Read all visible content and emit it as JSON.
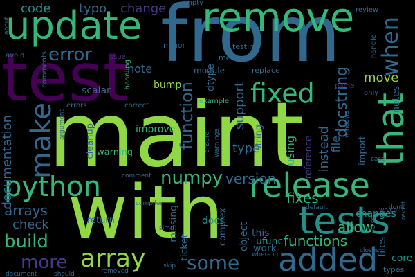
{
  "background": "#000000",
  "palette": {
    "lime": "#8fd744",
    "green": "#35b779",
    "teal": "#21918c",
    "blue": "#31688e",
    "indigo": "#443983",
    "purple": "#440154",
    "yellow": "#fde725"
  },
  "words": [
    {
      "text": "maint",
      "color": "#8fd744"
    },
    {
      "text": "from",
      "color": "#31688e"
    },
    {
      "text": "with",
      "color": "#8fd744"
    },
    {
      "text": "test",
      "color": "#440154"
    },
    {
      "text": "update",
      "color": "#35b779"
    },
    {
      "text": "remove",
      "color": "#35b779"
    },
    {
      "text": "tests",
      "color": "#21918c"
    },
    {
      "text": "release",
      "color": "#35b779"
    },
    {
      "text": "added",
      "color": "#31688e"
    },
    {
      "text": "that",
      "color": "#35b779"
    },
    {
      "text": "python",
      "color": "#35b779"
    },
    {
      "text": "array",
      "color": "#8fd744"
    },
    {
      "text": "fixed",
      "color": "#35b779"
    },
    {
      "text": "make",
      "color": "#31688e"
    },
    {
      "text": "when",
      "color": "#31688e"
    },
    {
      "text": "error",
      "color": "#31688e"
    },
    {
      "text": "some",
      "color": "#31688e"
    },
    {
      "text": "numpy",
      "color": "#35b779"
    },
    {
      "text": "build",
      "color": "#35b779"
    },
    {
      "text": "more",
      "color": "#443983"
    },
    {
      "text": "function",
      "color": "#31688e"
    },
    {
      "text": "documentation",
      "color": "#31688e"
    },
    {
      "text": "version",
      "color": "#31688e"
    },
    {
      "text": "fixes",
      "color": "#35b779"
    },
    {
      "text": "arrays",
      "color": "#31688e"
    },
    {
      "text": "check",
      "color": "#31688e"
    },
    {
      "text": "docstring",
      "color": "#31688e"
    },
    {
      "text": "functions",
      "color": "#35b779"
    },
    {
      "text": "allow",
      "color": "#35b779"
    },
    {
      "text": "code",
      "color": "#21918c"
    },
    {
      "text": "typo",
      "color": "#31688e"
    },
    {
      "text": "change",
      "color": "#443983"
    },
    {
      "text": "support",
      "color": "#31688e"
    },
    {
      "text": "type",
      "color": "#31688e"
    },
    {
      "text": "move",
      "color": "#8fd744"
    },
    {
      "text": "note",
      "color": "#31688e"
    },
    {
      "text": "instead",
      "color": "#31688e"
    },
    {
      "text": "using",
      "color": "#35b779"
    },
    {
      "text": "docs",
      "color": "#21918c"
    },
    {
      "text": "changes",
      "color": "#21918c"
    },
    {
      "text": "files",
      "color": "#31688e"
    },
    {
      "text": "core",
      "color": "#21918c"
    },
    {
      "text": "ufunc",
      "color": "#21918c"
    },
    {
      "text": "missing",
      "color": "#31688e"
    },
    {
      "text": "ticket",
      "color": "#31688e"
    },
    {
      "text": "dtype",
      "color": "#31688e"
    },
    {
      "text": "bump",
      "color": "#8fd744"
    },
    {
      "text": "file",
      "color": "#31688e"
    },
    {
      "text": "notes",
      "color": "#31688e"
    },
    {
      "text": "improve",
      "color": "#35b779"
    },
    {
      "text": "scalar",
      "color": "#31688e"
    },
    {
      "text": "this",
      "color": "#31688e"
    },
    {
      "text": "object",
      "color": "#31688e"
    },
    {
      "text": "work",
      "color": "#31688e"
    },
    {
      "text": "string",
      "color": "#31688e"
    },
    {
      "text": "complex",
      "color": "#31688e"
    },
    {
      "text": "return",
      "color": "#31688e"
    },
    {
      "text": "cleanup",
      "color": "#31688e"
    },
    {
      "text": "warning",
      "color": "#35b779"
    },
    {
      "text": "reference",
      "color": "#443983"
    },
    {
      "text": "import",
      "color": "#31688e"
    },
    {
      "text": "module",
      "color": "#31688e"
    },
    {
      "text": "method",
      "color": "#31688e"
    },
    {
      "text": "replace",
      "color": "#31688e"
    },
    {
      "text": "testing",
      "color": "#31688e"
    },
    {
      "text": "minor",
      "color": "#31688e"
    },
    {
      "text": "empty",
      "color": "#31688e"
    },
    {
      "text": "review",
      "color": "#31688e"
    },
    {
      "text": "handle",
      "color": "#31688e"
    },
    {
      "text": "only",
      "color": "#31688e"
    },
    {
      "text": "name",
      "color": "#443983"
    },
    {
      "text": "example",
      "color": "#35b779"
    },
    {
      "text": "correct",
      "color": "#31688e"
    },
    {
      "text": "errors",
      "color": "#31688e"
    },
    {
      "text": "handling",
      "color": "#35b779"
    },
    {
      "text": "issue",
      "color": "#443983"
    },
    {
      "text": "comments",
      "color": "#31688e"
    },
    {
      "text": "avoid",
      "color": "#31688e"
    },
    {
      "text": "about",
      "color": "#31688e"
    },
    {
      "text": "argument",
      "color": "#31688e"
    },
    {
      "text": "ensure",
      "color": "#31688e"
    },
    {
      "text": "warnings",
      "color": "#31688e"
    },
    {
      "text": "windows",
      "color": "#31688e"
    },
    {
      "text": "case",
      "color": "#31688e"
    },
    {
      "text": "dont",
      "color": "#31688e"
    },
    {
      "text": "comment",
      "color": "#31688e"
    },
    {
      "text": "compiler",
      "color": "#31688e"
    },
    {
      "text": "default",
      "color": "#31688e"
    },
    {
      "text": "simd",
      "color": "#31688e"
    },
    {
      "text": "which",
      "color": "#31688e"
    },
    {
      "text": "also",
      "color": "#31688e"
    },
    {
      "text": "revert",
      "color": "#31688e"
    },
    {
      "text": "where",
      "color": "#31688e"
    },
    {
      "text": "into",
      "color": "#31688e"
    },
    {
      "text": "closes",
      "color": "#31688e"
    },
    {
      "text": "skip",
      "color": "#31688e"
    },
    {
      "text": "removed",
      "color": "#31688e"
    },
    {
      "text": "should",
      "color": "#31688e"
    },
    {
      "text": "document",
      "color": "#31688e"
    },
    {
      "text": "types",
      "color": "#31688e"
    }
  ]
}
